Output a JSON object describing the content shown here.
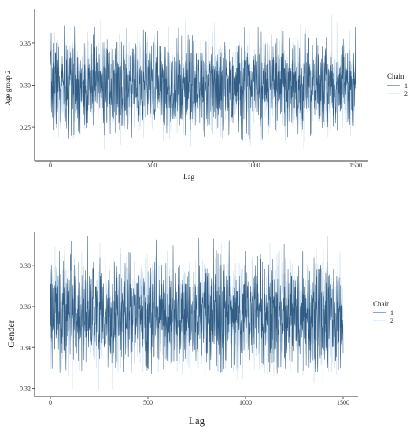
{
  "colors": {
    "chain1": "#1f4e79",
    "chain2": "#c9def0"
  },
  "chart_data": [
    {
      "type": "line",
      "x": {
        "range": [
          0,
          1500
        ],
        "ticks": [
          "0",
          "500",
          "1000",
          "1500"
        ]
      },
      "y": {
        "range": [
          0.21,
          0.39
        ],
        "ticks": [
          "0.25",
          "0.30",
          "0.35"
        ]
      },
      "xlabel": "Lag",
      "ylabel": "Age group 2",
      "legend": {
        "title": "Chain",
        "position": "right",
        "entries": [
          "1",
          "2"
        ]
      },
      "series": [
        {
          "name": "1",
          "center": 0.3,
          "spread": 0.027,
          "min": 0.234,
          "max": 0.372
        },
        {
          "name": "2",
          "center": 0.3,
          "spread": 0.027,
          "min": 0.222,
          "max": 0.386
        }
      ],
      "grid": false
    },
    {
      "type": "line",
      "x": {
        "range": [
          0,
          1500
        ],
        "ticks": [
          "0",
          "500",
          "1000",
          "1500"
        ]
      },
      "y": {
        "range": [
          0.316,
          0.396
        ],
        "ticks": [
          "0.32",
          "0.34",
          "0.36",
          "0.38"
        ]
      },
      "xlabel": "Lag",
      "ylabel": "Gender",
      "legend": {
        "title": "Chain",
        "position": "right",
        "entries": [
          "1",
          "2"
        ]
      },
      "series": [
        {
          "name": "1",
          "center": 0.356,
          "spread": 0.013,
          "min": 0.327,
          "max": 0.395
        },
        {
          "name": "2",
          "center": 0.356,
          "spread": 0.013,
          "min": 0.318,
          "max": 0.392
        }
      ],
      "grid": false
    }
  ]
}
